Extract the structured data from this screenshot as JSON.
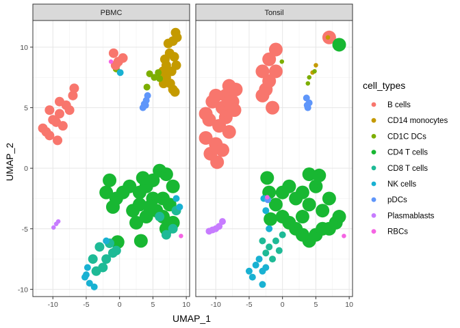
{
  "chart_data": {
    "type": "scatter",
    "xlabel": "UMAP_1",
    "ylabel": "UMAP_2",
    "xlim": [
      -13,
      10.5
    ],
    "ylim": [
      -10.6,
      12.2
    ],
    "xticks": [
      -10,
      -5,
      0,
      5,
      10
    ],
    "yticks": [
      -10,
      -5,
      0,
      5,
      10
    ],
    "x_tick_labels": [
      "-10",
      "-5",
      "0",
      "5",
      "10"
    ],
    "y_tick_labels": [
      "-10",
      "-5",
      "0",
      "5",
      "10"
    ],
    "grid": true,
    "legend": {
      "title": "cell_types",
      "position": "right",
      "entries": [
        {
          "label": "B cells",
          "color": "#F8766D"
        },
        {
          "label": "CD14 monocytes",
          "color": "#C49A00"
        },
        {
          "label": "CD1C DCs",
          "color": "#7CAE00"
        },
        {
          "label": "CD4 T cells",
          "color": "#18B732"
        },
        {
          "label": "CD8 T cells",
          "color": "#1EBA96"
        },
        {
          "label": "NK cells",
          "color": "#19B1D2"
        },
        {
          "label": "pDCs",
          "color": "#5F96FA"
        },
        {
          "label": "Plasmablasts",
          "color": "#C77CFF"
        },
        {
          "label": "RBCs",
          "color": "#F564E3"
        }
      ]
    },
    "panels": [
      {
        "title": "PBMC",
        "clusters": [
          {
            "cell_type": "CD14 monocytes",
            "points": [
              [
                7.0,
                8.5
              ],
              [
                7.5,
                9.5
              ],
              [
                8.0,
                10.5
              ],
              [
                8.4,
                11.2
              ],
              [
                7.0,
                7.5
              ],
              [
                7.6,
                7.0
              ],
              [
                8.0,
                6.5
              ],
              [
                6.5,
                8.0
              ],
              [
                6.8,
                9.0
              ],
              [
                7.3,
                10.3
              ],
              [
                8.5,
                8.5
              ],
              [
                8.2,
                9.2
              ],
              [
                6.6,
                7.0
              ],
              [
                7.8,
                8.0
              ],
              [
                8.6,
                10.8
              ],
              [
                8.3,
                6.3
              ]
            ]
          },
          {
            "cell_type": "CD1C DCs",
            "points": [
              [
                4.5,
                7.8
              ],
              [
                5.2,
                7.5
              ],
              [
                5.8,
                7.9
              ],
              [
                4.1,
                6.7
              ],
              [
                6.0,
                7.4
              ],
              [
                -0.5,
                8.2
              ]
            ]
          },
          {
            "cell_type": "B cells",
            "points": [
              [
                -11.0,
                3.0
              ],
              [
                -10.0,
                4.0
              ],
              [
                -9.0,
                4.5
              ],
              [
                -8.0,
                5.2
              ],
              [
                -7.0,
                6.0
              ],
              [
                -6.8,
                6.6
              ],
              [
                -11.5,
                3.3
              ],
              [
                -9.5,
                3.8
              ],
              [
                -10.5,
                2.7
              ],
              [
                -9.0,
                5.5
              ],
              [
                -8.5,
                3.5
              ],
              [
                -7.5,
                4.8
              ],
              [
                -10.5,
                4.8
              ],
              [
                -9.3,
                2.3
              ],
              [
                -0.9,
                9.5
              ],
              [
                -0.2,
                8.8
              ],
              [
                0.5,
                9.1
              ],
              [
                -0.6,
                8.5
              ]
            ]
          },
          {
            "cell_type": "CD4 T cells",
            "points": [
              [
                3.0,
                -2.0
              ],
              [
                4.0,
                -1.5
              ],
              [
                5.0,
                -1.0
              ],
              [
                6.0,
                -0.2
              ],
              [
                7.0,
                -0.5
              ],
              [
                8.0,
                -1.5
              ],
              [
                3.0,
                -3.0
              ],
              [
                5.5,
                -3.5
              ],
              [
                6.5,
                -4.0
              ],
              [
                7.5,
                -3.0
              ],
              [
                2.5,
                -4.5
              ],
              [
                4.0,
                -4.0
              ],
              [
                1.5,
                -1.5
              ],
              [
                0.5,
                -2.0
              ],
              [
                -0.5,
                -2.5
              ],
              [
                -1.5,
                -1.0
              ],
              [
                -2.0,
                -2.0
              ],
              [
                8.0,
                -4.5
              ],
              [
                2.0,
                -3.5
              ],
              [
                3.5,
                -0.8
              ],
              [
                6.5,
                -2.5
              ],
              [
                5.0,
                -2.5
              ],
              [
                4.5,
                -3.2
              ],
              [
                7.0,
                -5.0
              ],
              [
                3.2,
                -6.0
              ],
              [
                -1.0,
                -3.2
              ],
              [
                -0.3,
                -6.1
              ]
            ]
          },
          {
            "cell_type": "CD8 T cells",
            "points": [
              [
                6.0,
                -4.0
              ],
              [
                7.0,
                -5.5
              ],
              [
                8.0,
                -5.0
              ],
              [
                8.5,
                -3.5
              ],
              [
                -4.0,
                -7.5
              ],
              [
                -3.5,
                -8.5
              ],
              [
                -2.0,
                -7.5
              ],
              [
                -1.0,
                -7.0
              ],
              [
                -3.0,
                -6.5
              ],
              [
                -2.5,
                -8.2
              ],
              [
                -1.5,
                -6.2
              ],
              [
                -0.5,
                -6.8
              ]
            ]
          },
          {
            "cell_type": "NK cells",
            "points": [
              [
                -5.0,
                -8.8
              ],
              [
                -4.5,
                -9.5
              ],
              [
                -5.2,
                -9.0
              ],
              [
                -3.8,
                -9.8
              ],
              [
                -4.8,
                -8.2
              ],
              [
                -2.0,
                -6.0
              ],
              [
                8.5,
                -2.5
              ],
              [
                9.0,
                -3.2
              ],
              [
                0.1,
                7.9
              ]
            ]
          },
          {
            "cell_type": "pDCs",
            "points": [
              [
                3.7,
                5.3
              ],
              [
                4.0,
                5.6
              ],
              [
                3.5,
                5.0
              ],
              [
                4.2,
                6.0
              ],
              [
                3.9,
                5.2
              ]
            ]
          },
          {
            "cell_type": "Plasmablasts",
            "points": [
              [
                -9.5,
                -4.6
              ],
              [
                -9.9,
                -4.9
              ],
              [
                -9.2,
                -4.4
              ]
            ]
          },
          {
            "cell_type": "RBCs",
            "points": [
              [
                9.2,
                -5.6
              ],
              [
                -1.3,
                8.8
              ]
            ]
          }
        ]
      },
      {
        "title": "Tonsil",
        "clusters": [
          {
            "cell_type": "B cells",
            "points": [
              [
                -11.5,
                2.5
              ],
              [
                -11.0,
                4.0
              ],
              [
                -10.5,
                5.5
              ],
              [
                -10.0,
                2.0
              ],
              [
                -9.5,
                3.5
              ],
              [
                -9.0,
                5.0
              ],
              [
                -8.5,
                6.0
              ],
              [
                -8.0,
                6.8
              ],
              [
                -7.5,
                5.5
              ],
              [
                -7.0,
                6.5
              ],
              [
                -8.0,
                3.0
              ],
              [
                -9.0,
                1.5
              ],
              [
                -11.5,
                4.5
              ],
              [
                -10.0,
                6.0
              ],
              [
                -8.5,
                4.2
              ],
              [
                -7.2,
                4.8
              ],
              [
                -9.8,
                0.5
              ],
              [
                -10.8,
                1.2
              ],
              [
                -3.0,
                6.0
              ],
              [
                -3.0,
                8.0
              ],
              [
                -2.0,
                9.0
              ],
              [
                -1.0,
                8.0
              ],
              [
                -1.5,
                5.0
              ],
              [
                -2.5,
                6.5
              ],
              [
                -1.0,
                9.8
              ],
              [
                -2.0,
                7.2
              ],
              [
                7.0,
                10.8
              ]
            ]
          },
          {
            "cell_type": "CD14 monocytes",
            "points": [
              [
                6.8,
                10.8
              ],
              [
                5.0,
                8.5
              ],
              [
                4.5,
                7.9
              ]
            ]
          },
          {
            "cell_type": "CD1C DCs",
            "points": [
              [
                4.0,
                7.5
              ],
              [
                4.8,
                8.0
              ],
              [
                3.8,
                7.0
              ],
              [
                -0.1,
                8.8
              ]
            ]
          },
          {
            "cell_type": "CD4 T cells",
            "points": [
              [
                -2.0,
                -2.0
              ],
              [
                -1.0,
                -3.0
              ],
              [
                0.0,
                -4.0
              ],
              [
                1.0,
                -4.5
              ],
              [
                2.0,
                -5.0
              ],
              [
                3.0,
                -5.5
              ],
              [
                4.0,
                -6.0
              ],
              [
                5.0,
                -5.5
              ],
              [
                6.0,
                -5.0
              ],
              [
                7.0,
                -5.0
              ],
              [
                8.0,
                -4.5
              ],
              [
                8.5,
                -4.0
              ],
              [
                1.0,
                -1.5
              ],
              [
                2.0,
                -2.5
              ],
              [
                3.0,
                -2.0
              ],
              [
                4.0,
                -3.0
              ],
              [
                5.0,
                -1.5
              ],
              [
                6.0,
                -3.5
              ],
              [
                7.0,
                -2.5
              ],
              [
                0.0,
                -2.0
              ],
              [
                -2.3,
                -0.8
              ],
              [
                5.5,
                -0.6
              ],
              [
                4.0,
                -0.5
              ],
              [
                8.5,
                10.2
              ],
              [
                3.0,
                -4.0
              ],
              [
                -1.8,
                -4.2
              ]
            ]
          },
          {
            "cell_type": "CD8 T cells",
            "points": [
              [
                -1.0,
                -6.0
              ],
              [
                -2.0,
                -6.5
              ],
              [
                -1.5,
                -7.5
              ],
              [
                -3.0,
                -6.0
              ],
              [
                -2.5,
                -7.0
              ],
              [
                -0.5,
                -6.8
              ],
              [
                0.0,
                -5.5
              ]
            ]
          },
          {
            "cell_type": "NK cells",
            "points": [
              [
                -4.0,
                -8.0
              ],
              [
                -5.0,
                -8.5
              ],
              [
                -3.5,
                -7.5
              ],
              [
                -4.5,
                -9.0
              ],
              [
                -3.0,
                -8.5
              ],
              [
                -2.5,
                -8.2
              ],
              [
                -3.0,
                -9.6
              ],
              [
                -2.5,
                -3.5
              ],
              [
                -2.0,
                -5.0
              ],
              [
                -2.8,
                -2.5
              ]
            ]
          },
          {
            "cell_type": "pDCs",
            "points": [
              [
                3.6,
                5.8
              ],
              [
                3.8,
                5.0
              ],
              [
                4.0,
                5.4
              ],
              [
                3.7,
                5.2
              ],
              [
                -2.2,
                -2.6
              ]
            ]
          },
          {
            "cell_type": "Plasmablasts",
            "points": [
              [
                -11.0,
                -5.2
              ],
              [
                -10.0,
                -5.0
              ],
              [
                -9.5,
                -4.8
              ],
              [
                -9.0,
                -4.4
              ],
              [
                -10.5,
                -5.1
              ]
            ]
          },
          {
            "cell_type": "RBCs",
            "points": [
              [
                9.2,
                -5.6
              ],
              [
                -2.3,
                -2.4
              ]
            ]
          }
        ]
      }
    ]
  }
}
